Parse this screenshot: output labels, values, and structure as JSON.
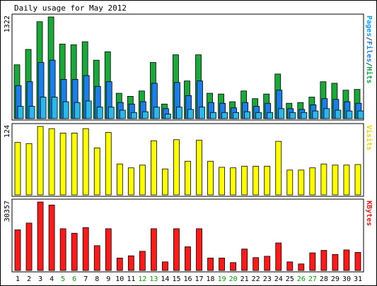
{
  "title": "Daily usage for May 2012",
  "chart_data": [
    {
      "type": "bar",
      "panel": "hits-files-pages",
      "categories": [
        "1",
        "2",
        "3",
        "4",
        "5",
        "6",
        "7",
        "8",
        "9",
        "10",
        "11",
        "12",
        "13",
        "14",
        "15",
        "16",
        "17",
        "18",
        "19",
        "20",
        "21",
        "22",
        "23",
        "24",
        "25",
        "26",
        "27",
        "28",
        "29",
        "30",
        "31"
      ],
      "weekend_days": [
        "5",
        "6",
        "12",
        "13",
        "19",
        "20",
        "26",
        "27"
      ],
      "ylabel": "1322",
      "ylim": [
        0,
        1322
      ],
      "right_label_parts": [
        {
          "text": "Pages",
          "color": "#00a0ff"
        },
        {
          "text": "/",
          "color": "#333333"
        },
        {
          "text": "Files",
          "color": "#1a7fe8"
        },
        {
          "text": "/",
          "color": "#333333"
        },
        {
          "text": "Hits",
          "color": "#00aa44"
        }
      ],
      "series": [
        {
          "name": "Hits",
          "color": "#1ba83a",
          "values": [
            700,
            900,
            1260,
            1322,
            970,
            960,
            1000,
            760,
            870,
            330,
            290,
            360,
            730,
            190,
            830,
            490,
            830,
            330,
            320,
            220,
            360,
            260,
            320,
            580,
            200,
            210,
            280,
            480,
            460,
            370,
            380
          ]
        },
        {
          "name": "Files",
          "color": "#1a7fe8",
          "values": [
            430,
            480,
            730,
            760,
            510,
            510,
            560,
            420,
            480,
            210,
            190,
            220,
            460,
            130,
            470,
            300,
            490,
            210,
            200,
            140,
            210,
            160,
            200,
            370,
            130,
            120,
            180,
            260,
            250,
            220,
            200
          ]
        },
        {
          "name": "Pages",
          "color": "#2ab8ec",
          "values": [
            160,
            160,
            280,
            280,
            220,
            210,
            230,
            150,
            150,
            110,
            80,
            90,
            150,
            60,
            150,
            120,
            150,
            80,
            80,
            80,
            90,
            80,
            80,
            130,
            80,
            80,
            100,
            130,
            110,
            100,
            100
          ]
        }
      ]
    },
    {
      "type": "bar",
      "panel": "visits",
      "categories": [
        "1",
        "2",
        "3",
        "4",
        "5",
        "6",
        "7",
        "8",
        "9",
        "10",
        "11",
        "12",
        "13",
        "14",
        "15",
        "16",
        "17",
        "18",
        "19",
        "20",
        "21",
        "22",
        "23",
        "24",
        "25",
        "26",
        "27",
        "28",
        "29",
        "30",
        "31"
      ],
      "ylabel": "124",
      "ylim": [
        0,
        124
      ],
      "right_label_parts": [
        {
          "text": "Visits",
          "color": "#e6d800"
        }
      ],
      "series": [
        {
          "name": "Visits",
          "color": "#ffff00",
          "values": [
            95,
            93,
            124,
            120,
            112,
            112,
            120,
            85,
            113,
            56,
            49,
            54,
            98,
            47,
            100,
            61,
            99,
            61,
            50,
            49,
            52,
            52,
            52,
            97,
            45,
            45,
            49,
            56,
            54,
            54,
            55
          ]
        }
      ]
    },
    {
      "type": "bar",
      "panel": "kbytes",
      "categories": [
        "1",
        "2",
        "3",
        "4",
        "5",
        "6",
        "7",
        "8",
        "9",
        "10",
        "11",
        "12",
        "13",
        "14",
        "15",
        "16",
        "17",
        "18",
        "19",
        "20",
        "21",
        "22",
        "23",
        "24",
        "25",
        "26",
        "27",
        "28",
        "29",
        "30",
        "31"
      ],
      "ylabel": "30357",
      "ylim": [
        0,
        30357
      ],
      "right_label_parts": [
        {
          "text": "KBytes",
          "color": "#ee1111"
        }
      ],
      "series": [
        {
          "name": "KBytes",
          "color": "#ff1a1a",
          "values": [
            18000,
            21000,
            30357,
            29000,
            18500,
            16500,
            19000,
            11000,
            18500,
            5500,
            6500,
            8500,
            18500,
            3800,
            18500,
            10500,
            18500,
            5500,
            5500,
            3500,
            9500,
            5700,
            6300,
            12200,
            3800,
            2900,
            7800,
            8900,
            7100,
            9100,
            8000
          ]
        }
      ]
    }
  ],
  "colors": {
    "weekday_label": "#000000",
    "weekend_label": "#00a000",
    "frame": "#000000",
    "panel_bg": "#ffffff"
  }
}
